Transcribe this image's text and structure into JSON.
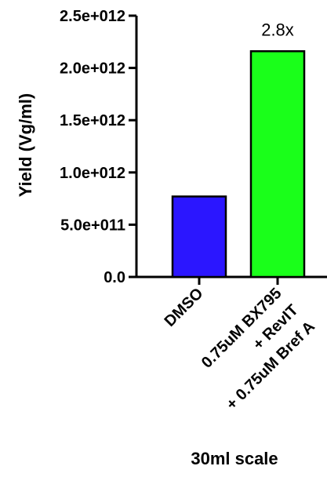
{
  "chart_data": {
    "type": "bar",
    "categories": [
      {
        "lines": [
          "DMSO"
        ]
      },
      {
        "lines": [
          "0.75uM BX795",
          "+ RevIT",
          "+ 0.75uM Bref A"
        ]
      }
    ],
    "values": [
      770000000000,
      2160000000000
    ],
    "colors": [
      "#2b16ff",
      "#1aff1a"
    ],
    "ylabel": "Yield (Vg/ml)",
    "xlabel": "30ml scale",
    "ylim": [
      0,
      2500000000000
    ],
    "yticks": [
      {
        "value": 0,
        "label": "0.0"
      },
      {
        "value": 500000000000,
        "label": "5.0e+011"
      },
      {
        "value": 1000000000000,
        "label": "1.0e+012"
      },
      {
        "value": 1500000000000,
        "label": "1.5e+012"
      },
      {
        "value": 2000000000000,
        "label": "2.0e+012"
      },
      {
        "value": 2500000000000,
        "label": "2.5e+012"
      }
    ],
    "annotations": [
      {
        "category_index": 1,
        "text": "2.8x"
      }
    ],
    "grid": false,
    "legend": "none"
  }
}
